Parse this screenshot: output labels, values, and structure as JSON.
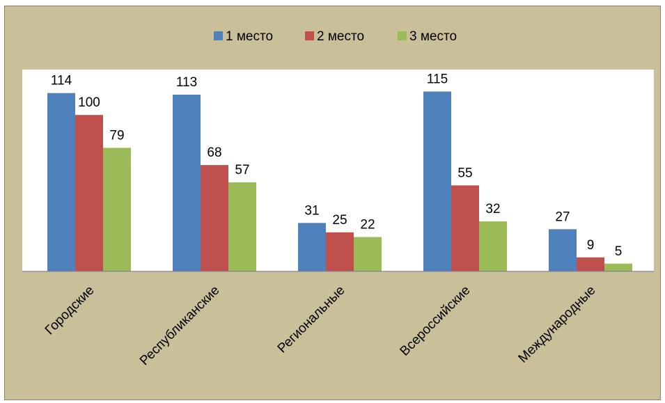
{
  "chart_data": {
    "type": "bar",
    "categories": [
      "Городские",
      "Республиканские",
      "Региональные",
      "Всероссийские",
      "Международные"
    ],
    "series": [
      {
        "name": "1 место",
        "values": [
          114,
          113,
          31,
          115,
          27
        ],
        "color": "#4f81bd"
      },
      {
        "name": "2 место",
        "values": [
          100,
          68,
          25,
          55,
          9
        ],
        "color": "#c0504d"
      },
      {
        "name": "3 место",
        "values": [
          79,
          57,
          22,
          32,
          5
        ],
        "color": "#9bbb59"
      }
    ],
    "title": "",
    "xlabel": "",
    "ylabel": "",
    "ylim": [
      0,
      129
    ],
    "grid": false,
    "legend": "top"
  }
}
